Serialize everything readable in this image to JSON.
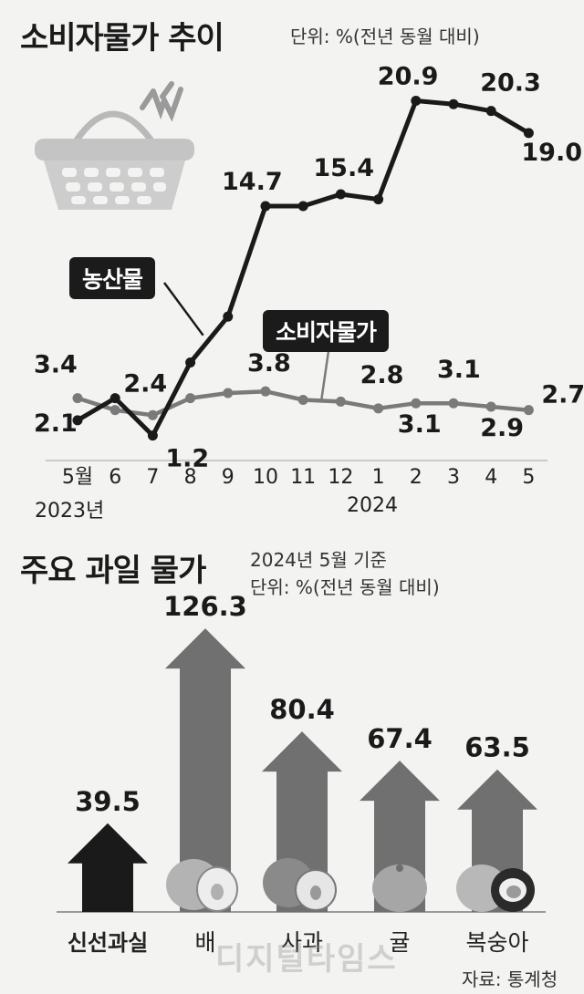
{
  "top": {
    "title": "소비자물가 추이",
    "unit": "단위: %(전년 동월 대비)"
  },
  "bottom": {
    "title": "주요 과일 물가",
    "basis": "2024년 5월 기준",
    "unit": "단위: %(전년 동월 대비)",
    "source": "자료: 통계청",
    "watermark": "디지털타임스"
  },
  "chart_data": [
    {
      "type": "line",
      "title": "소비자물가 추이",
      "unit": "%(전년 동월 대비)",
      "x": [
        "5월",
        "6",
        "7",
        "8",
        "9",
        "10",
        "11",
        "12",
        "1",
        "2",
        "3",
        "4",
        "5"
      ],
      "year_labels": [
        "2023년",
        "2024"
      ],
      "series": [
        {
          "name": "농산물",
          "color": "#1a1a1a",
          "values": [
            2.1,
            3.4,
            1.2,
            5.5,
            8.2,
            14.7,
            14.7,
            15.4,
            15.1,
            20.9,
            20.7,
            20.3,
            19.0
          ],
          "labeled": {
            "0": "2.1",
            "5": "14.7",
            "7": "15.4",
            "9": "20.9",
            "11": "20.3",
            "12": "19.0"
          }
        },
        {
          "name": "소비자물가",
          "color": "#7a7a7a",
          "values": [
            3.4,
            2.7,
            2.4,
            3.4,
            3.7,
            3.8,
            3.3,
            3.2,
            2.8,
            3.1,
            3.1,
            2.9,
            2.7
          ],
          "labeled": {
            "0": "3.4",
            "2": "2.4",
            "5": "3.8",
            "8": "2.8",
            "9": "3.1",
            "10": "3.1",
            "11": "2.9",
            "12": "2.7"
          }
        }
      ],
      "ylim": [
        0,
        22
      ]
    },
    {
      "type": "bar",
      "title": "주요 과일 물가",
      "unit": "%(전년 동월 대비)",
      "categories": [
        "신선과실",
        "배",
        "사과",
        "귤",
        "복숭아"
      ],
      "values": [
        39.5,
        126.3,
        80.4,
        67.4,
        63.5
      ],
      "colors": [
        "#1a1a1a",
        "#707070",
        "#707070",
        "#707070",
        "#707070"
      ],
      "ylim": [
        0,
        130
      ]
    }
  ]
}
